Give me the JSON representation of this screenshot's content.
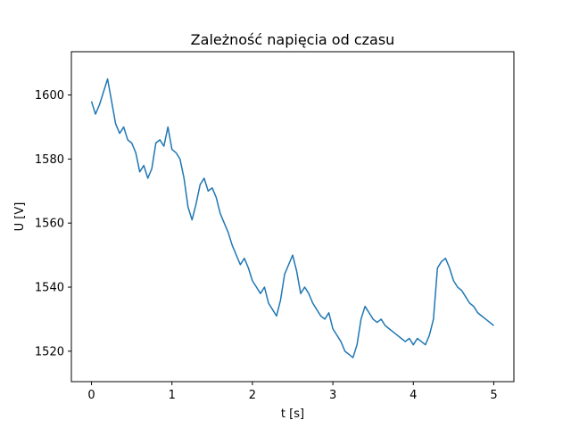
{
  "chart_data": {
    "type": "line",
    "title": "Zależność napięcia od czasu",
    "xlabel": "t [s]",
    "ylabel": "U [V]",
    "xlim": [
      -0.25,
      5.25
    ],
    "ylim": [
      1510.5,
      1613.5
    ],
    "xticks": [
      0,
      1,
      2,
      3,
      4,
      5
    ],
    "yticks": [
      1520,
      1540,
      1560,
      1580,
      1600
    ],
    "grid": false,
    "series": [
      {
        "color": "#1f77b4",
        "x": [
          0.0,
          0.05,
          0.1,
          0.15,
          0.2,
          0.25,
          0.3,
          0.35,
          0.4,
          0.45,
          0.5,
          0.55,
          0.6,
          0.65,
          0.7,
          0.75,
          0.8,
          0.85,
          0.9,
          0.95,
          1.0,
          1.05,
          1.1,
          1.15,
          1.2,
          1.25,
          1.3,
          1.35,
          1.4,
          1.45,
          1.5,
          1.55,
          1.6,
          1.65,
          1.7,
          1.75,
          1.8,
          1.85,
          1.9,
          1.95,
          2.0,
          2.05,
          2.1,
          2.15,
          2.2,
          2.25,
          2.3,
          2.35,
          2.4,
          2.45,
          2.5,
          2.55,
          2.6,
          2.65,
          2.7,
          2.75,
          2.8,
          2.85,
          2.9,
          2.95,
          3.0,
          3.05,
          3.1,
          3.15,
          3.2,
          3.25,
          3.3,
          3.35,
          3.4,
          3.45,
          3.5,
          3.55,
          3.6,
          3.65,
          3.7,
          3.75,
          3.8,
          3.85,
          3.9,
          3.95,
          4.0,
          4.05,
          4.1,
          4.15,
          4.2,
          4.25,
          4.3,
          4.35,
          4.4,
          4.45,
          4.5,
          4.55,
          4.6,
          4.65,
          4.7,
          4.75,
          4.8,
          4.85,
          4.9,
          4.95,
          5.0
        ],
        "y": [
          1598,
          1594,
          1597,
          1601,
          1605,
          1598,
          1591,
          1588,
          1590,
          1586,
          1585,
          1582,
          1576,
          1578,
          1574,
          1577,
          1585,
          1586,
          1584,
          1590,
          1583,
          1582,
          1580,
          1574,
          1565,
          1561,
          1566,
          1572,
          1574,
          1570,
          1571,
          1568,
          1563,
          1560,
          1557,
          1553,
          1550,
          1547,
          1549,
          1546,
          1542,
          1540,
          1538,
          1540,
          1535,
          1533,
          1531,
          1536,
          1544,
          1547,
          1550,
          1545,
          1538,
          1540,
          1538,
          1535,
          1533,
          1531,
          1530,
          1532,
          1527,
          1525,
          1523,
          1520,
          1519,
          1518,
          1522,
          1530,
          1534,
          1532,
          1530,
          1529,
          1530,
          1528,
          1527,
          1526,
          1525,
          1524,
          1523,
          1524,
          1522,
          1524,
          1523,
          1522,
          1525,
          1530,
          1546,
          1548,
          1549,
          1546,
          1542,
          1540,
          1539,
          1537,
          1535,
          1534,
          1532,
          1531,
          1530,
          1529,
          1528
        ]
      }
    ]
  }
}
